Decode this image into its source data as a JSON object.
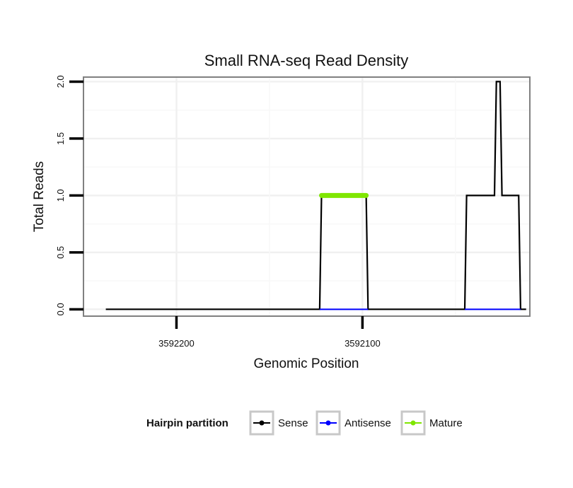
{
  "chart_data": {
    "type": "line",
    "title": "Small RNA-seq Read Density",
    "xlabel": "Genomic Position",
    "ylabel": "Total Reads",
    "xlim": [
      3592250,
      3592010
    ],
    "ylim": [
      -0.06,
      2.04
    ],
    "x_reversed": true,
    "x_ticks": [
      3592200,
      3592100
    ],
    "y_ticks": [
      0.0,
      0.5,
      1.0,
      1.5,
      2.0
    ],
    "y_tick_labels": [
      "0.0",
      "0.5",
      "1.0",
      "1.5",
      "2.0"
    ],
    "grid": true,
    "legend": {
      "title": "Hairpin partition",
      "placement": "bottom",
      "entries": [
        "Sense",
        "Antisense",
        "Mature"
      ]
    },
    "colors": {
      "Sense": "#000000",
      "Antisense": "#0000ff",
      "Mature": "#7fe600"
    },
    "series": [
      {
        "name": "Sense",
        "x": [
          3592238,
          3592123,
          3592122,
          3592098,
          3592097,
          3592045,
          3592044,
          3592029,
          3592028,
          3592026,
          3592025,
          3592016,
          3592015,
          3592012
        ],
        "y": [
          0,
          0,
          1,
          1,
          0,
          0,
          1,
          1,
          2,
          2,
          1,
          1,
          0,
          0
        ]
      },
      {
        "name": "Antisense",
        "x": [
          3592123,
          3592097,
          3592045,
          3592015
        ],
        "y": [
          0,
          0,
          0,
          0
        ],
        "segments": [
          [
            0,
            1
          ],
          [
            2,
            3
          ]
        ]
      },
      {
        "name": "Mature",
        "x": [
          3592122,
          3592098
        ],
        "y": [
          1,
          1
        ]
      }
    ]
  }
}
